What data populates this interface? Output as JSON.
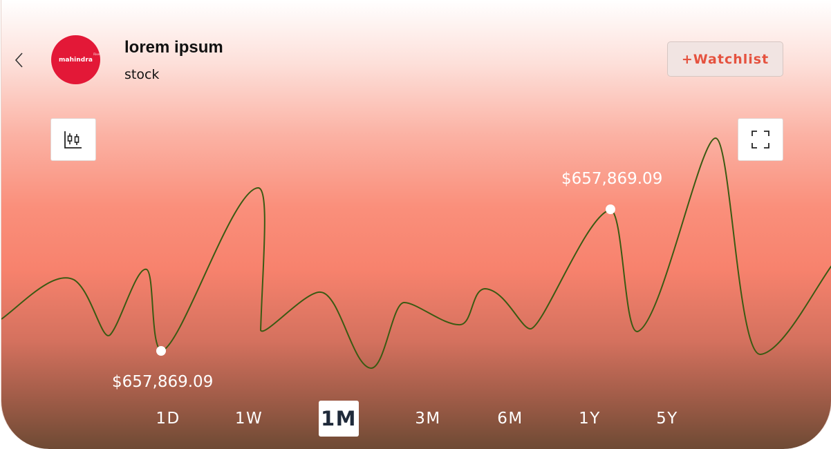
{
  "header": {
    "back_icon": "chevron-left-icon",
    "logo_text": "mahindra",
    "logo_superscript": "Rise",
    "logo_color": "#e31837",
    "title": "lorem ipsum",
    "subtitle": "stock",
    "watchlist_label": "+Watchlist",
    "watchlist_color": "#e5523f"
  },
  "toolbar": {
    "chart_type_icon": "candlestick-chart-icon",
    "fullscreen_icon": "fullscreen-icon"
  },
  "chart": {
    "low_label": "$657,869.09",
    "high_label": "$657,869.09",
    "line_color": "#3a5a12",
    "marker_color": "#ffffff"
  },
  "ranges": {
    "items": [
      "1D",
      "1W",
      "1M",
      "3M",
      "6M",
      "1Y",
      "5Y"
    ],
    "selected": "1M"
  }
}
